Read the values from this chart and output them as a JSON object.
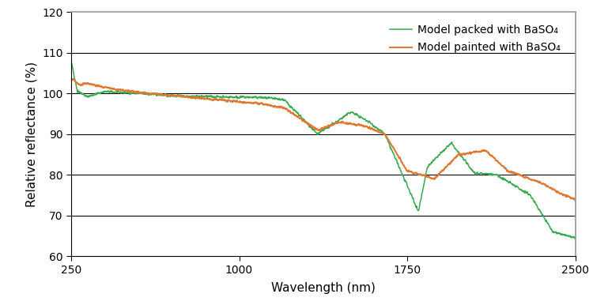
{
  "title": "",
  "xlabel": "Wavelength (nm)",
  "ylabel": "Relative reflectance (%)",
  "xlim": [
    250,
    2500
  ],
  "ylim": [
    60,
    120
  ],
  "yticks": [
    60,
    70,
    80,
    90,
    100,
    110,
    120
  ],
  "xticks": [
    250,
    1000,
    1750,
    2500
  ],
  "grid_y": [
    70,
    80,
    90,
    100,
    110
  ],
  "line_packed_color": "#3aaa50",
  "line_painted_color": "#e07832",
  "legend_labels": [
    "Model packed with BaSO₄",
    "Model painted with BaSO₄"
  ],
  "background_color": "#ffffff",
  "spine_color": "#000000",
  "top_spine_color": "#999999"
}
